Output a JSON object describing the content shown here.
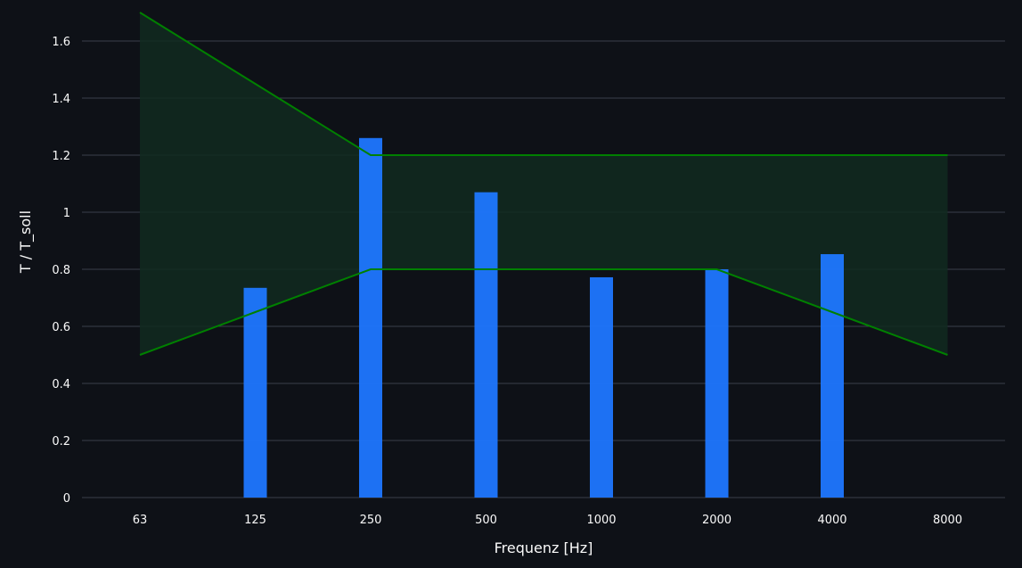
{
  "chart_data": {
    "type": "bar",
    "categories": [
      "63",
      "125",
      "250",
      "500",
      "1000",
      "2000",
      "4000",
      "8000"
    ],
    "values": [
      null,
      0.735,
      1.26,
      1.07,
      0.772,
      0.8,
      0.853,
      null
    ],
    "xlabel": "Frequenz [Hz]",
    "ylabel": "T / T_soll",
    "ylim": [
      0,
      1.7
    ],
    "yticks": [
      0,
      0.2,
      0.4,
      0.6,
      0.8,
      1,
      1.2,
      1.4,
      1.6
    ],
    "ytick_labels": [
      "0",
      "0.2",
      "0.4",
      "0.6",
      "0.8",
      "1",
      "1.2",
      "1.4",
      "1.6"
    ],
    "grid": true,
    "tolerance_band": {
      "upper": [
        1.7,
        1.45,
        1.2,
        1.2,
        1.2,
        1.2,
        1.2,
        1.2
      ],
      "lower": [
        0.5,
        0.65,
        0.8,
        0.8,
        0.8,
        0.8,
        0.65,
        0.5
      ]
    },
    "colors": {
      "bar": "#1f77ff",
      "band_line": "#008000",
      "band_fill": "#112a20",
      "background": "#0e1117",
      "grid": "#3a3f4b",
      "text": "#fafafa"
    }
  }
}
